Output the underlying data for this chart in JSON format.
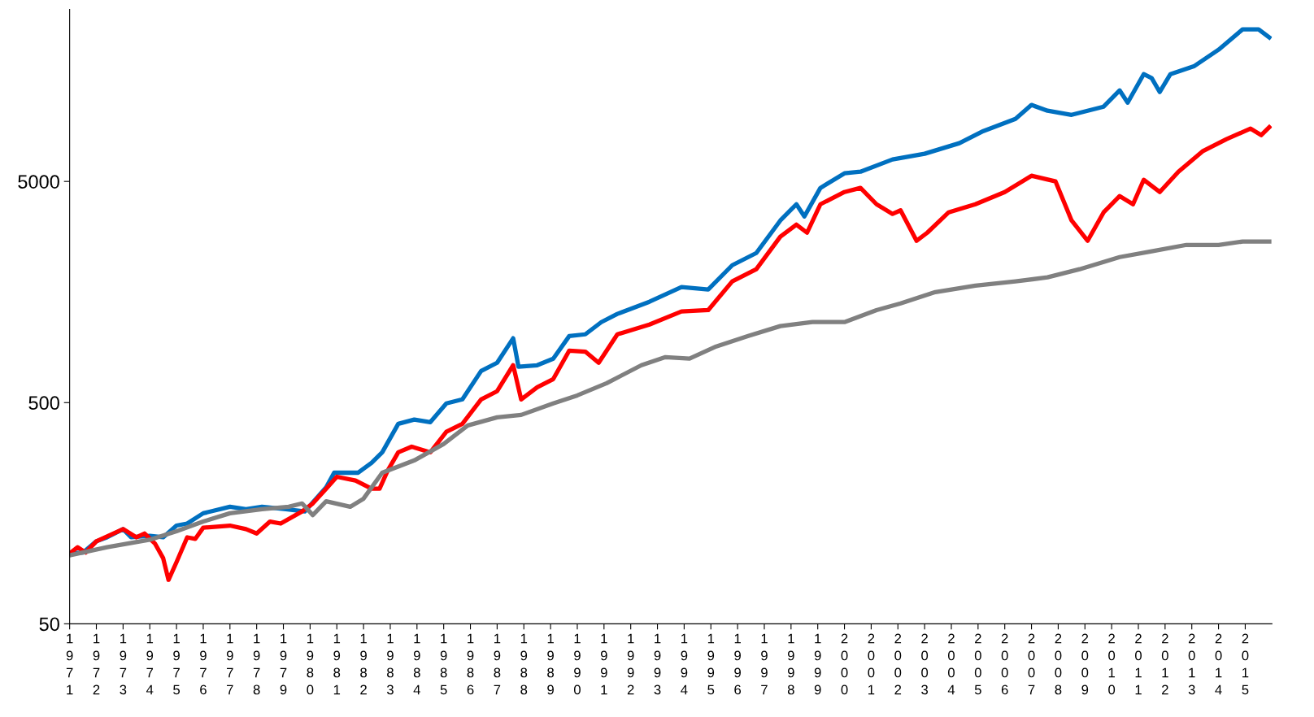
{
  "chart_data": {
    "type": "line",
    "log": "y",
    "grid": false,
    "legend": false,
    "marker": "none",
    "line_style": "solid",
    "xlim": [
      1971,
      2016
    ],
    "ylim": [
      50,
      30000
    ],
    "yticks": [
      50,
      500,
      5000
    ],
    "xticks": [
      1971,
      1972,
      1973,
      1974,
      1975,
      1976,
      1977,
      1978,
      1979,
      1980,
      1981,
      1982,
      1983,
      1984,
      1985,
      1986,
      1987,
      1988,
      1989,
      1990,
      1991,
      1992,
      1993,
      1994,
      1995,
      1996,
      1997,
      1998,
      1999,
      2000,
      2001,
      2002,
      2003,
      2004,
      2005,
      2006,
      2007,
      2008,
      2009,
      2010,
      2011,
      2012,
      2013,
      2014,
      2015
    ],
    "series": [
      {
        "color": "#0070c0",
        "x": [
          1971.0,
          1971.5,
          1972.0,
          1972.4,
          1973.0,
          1973.3,
          1974.0,
          1974.5,
          1975.0,
          1975.4,
          1976.0,
          1977.0,
          1977.6,
          1978.2,
          1979.1,
          1979.8,
          1980.6,
          1980.9,
          1981.8,
          1982.3,
          1982.7,
          1983.3,
          1983.9,
          1984.5,
          1985.1,
          1985.7,
          1986.4,
          1987.0,
          1987.6,
          1987.8,
          1988.5,
          1989.1,
          1989.7,
          1990.3,
          1990.9,
          1991.5,
          1992.7,
          1993.9,
          1994.9,
          1995.8,
          1996.7,
          1997.6,
          1998.2,
          1998.5,
          1999.1,
          2000.0,
          2000.6,
          2001.8,
          2003.0,
          2004.3,
          2005.2,
          2006.4,
          2007.0,
          2007.6,
          2008.5,
          2009.7,
          2010.3,
          2010.6,
          2011.2,
          2011.5,
          2011.8,
          2012.2,
          2013.1,
          2014.0,
          2014.9,
          2015.5,
          2015.9
        ],
        "values": [
          104,
          105,
          118,
          123,
          134,
          123,
          125,
          123,
          139,
          142,
          158,
          169,
          165,
          169,
          165,
          161,
          207,
          241,
          241,
          267,
          298,
          401,
          419,
          408,
          496,
          517,
          695,
          757,
          977,
          726,
          738,
          790,
          1000,
          1018,
          1156,
          1259,
          1429,
          1664,
          1622,
          2090,
          2373,
          3330,
          3943,
          3475,
          4674,
          5444,
          5535,
          6285,
          6670,
          7447,
          8450,
          9594,
          11090,
          10440,
          10000,
          10890,
          12900,
          11360,
          15280,
          14650,
          12680,
          15280,
          16630,
          19700,
          24350,
          24350,
          22390
        ]
      },
      {
        "color": "#ff0000",
        "x": [
          1971.0,
          1971.3,
          1971.6,
          1972.0,
          1973.0,
          1973.5,
          1973.8,
          1974.2,
          1974.5,
          1974.7,
          1975.0,
          1975.4,
          1975.7,
          1976.0,
          1977.0,
          1977.6,
          1978.0,
          1978.5,
          1978.9,
          1979.7,
          1980.1,
          1980.6,
          1981.0,
          1981.7,
          1982.3,
          1982.6,
          1982.9,
          1983.3,
          1983.8,
          1984.5,
          1985.1,
          1985.7,
          1986.4,
          1987.0,
          1987.6,
          1987.9,
          1988.5,
          1989.1,
          1989.7,
          1990.3,
          1990.8,
          1991.5,
          1992.7,
          1993.9,
          1994.9,
          1995.8,
          1996.7,
          1997.6,
          1998.2,
          1998.6,
          1999.1,
          2000.0,
          2000.6,
          2001.2,
          2001.8,
          2002.1,
          2002.7,
          2003.1,
          2003.9,
          2004.9,
          2006.0,
          2007.0,
          2007.9,
          2008.5,
          2009.1,
          2009.7,
          2010.3,
          2010.8,
          2011.2,
          2011.8,
          2012.5,
          2013.4,
          2014.3,
          2015.2,
          2015.6,
          2015.9
        ],
        "values": [
          104,
          111,
          105,
          118,
          134,
          123,
          128,
          115,
          99,
          79,
          95,
          123,
          121,
          136,
          139,
          134,
          128,
          145,
          142,
          161,
          175,
          204,
          231,
          222,
          204,
          204,
          246,
          298,
          316,
          298,
          369,
          401,
          517,
          563,
          738,
          517,
          587,
          639,
          859,
          850,
          757,
          1018,
          1127,
          1291,
          1310,
          1766,
          2005,
          2812,
          3190,
          2932,
          3943,
          4478,
          4674,
          3943,
          3565,
          3700,
          2695,
          2932,
          3625,
          3943,
          4478,
          5305,
          5000,
          3330,
          2695,
          3625,
          4295,
          3943,
          5085,
          4478,
          5535,
          6840,
          7765,
          8670,
          8100,
          8800
        ]
      },
      {
        "color": "#808080",
        "x": [
          1971.0,
          1972.4,
          1974.0,
          1975.0,
          1976.0,
          1977.0,
          1978.2,
          1979.2,
          1979.7,
          1980.1,
          1980.6,
          1981.5,
          1982.0,
          1982.7,
          1983.9,
          1985.0,
          1985.9,
          1987.0,
          1987.9,
          1989.1,
          1990.0,
          1991.1,
          1992.4,
          1993.3,
          1994.2,
          1995.2,
          1996.4,
          1997.6,
          1998.8,
          2000.0,
          2001.2,
          2002.1,
          2003.4,
          2004.9,
          2006.4,
          2007.6,
          2008.8,
          2010.3,
          2011.5,
          2012.8,
          2014.0,
          2014.9,
          2015.9
        ],
        "values": [
          102,
          111,
          120,
          131,
          145,
          158,
          165,
          169,
          175,
          155,
          179,
          169,
          184,
          241,
          274,
          325,
          394,
          429,
          440,
          496,
          539,
          612,
          738,
          803,
          790,
          897,
          1000,
          1109,
          1156,
          1156,
          1310,
          1405,
          1580,
          1690,
          1766,
          1842,
          2005,
          2275,
          2415,
          2582,
          2582,
          2674,
          2674
        ]
      }
    ]
  }
}
